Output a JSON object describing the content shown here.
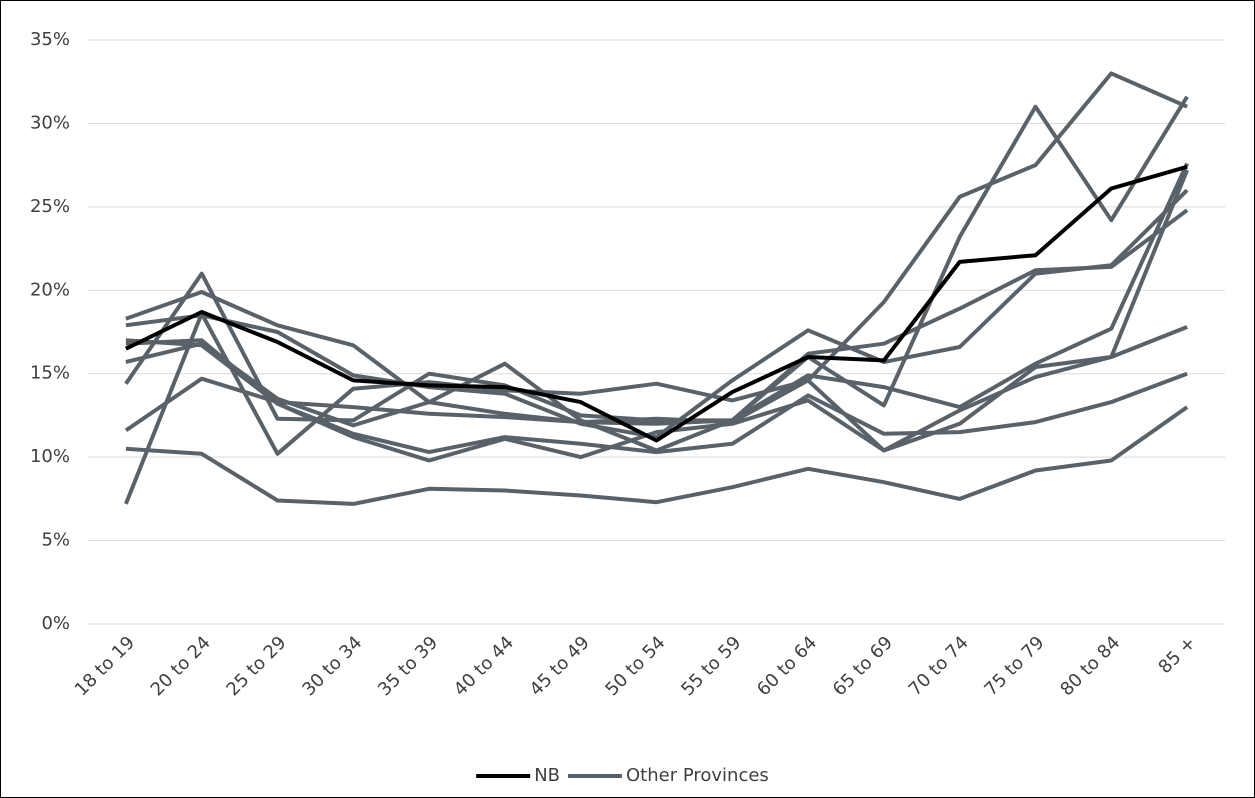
{
  "chart_data": {
    "type": "line",
    "categories": [
      "18 to 19",
      "20 to 24",
      "25 to 29",
      "30 to 34",
      "35 to 39",
      "40 to 44",
      "45 to 49",
      "50 to 54",
      "55 to 59",
      "60 to 64",
      "65 to 69",
      "70 to 74",
      "75 to 79",
      "80 to 84",
      "85 +"
    ],
    "series": [
      {
        "name": "NB",
        "color": "#000000",
        "values": [
          16.5,
          18.7,
          16.9,
          14.6,
          14.3,
          14.2,
          13.3,
          11.0,
          13.9,
          16.0,
          15.8,
          21.7,
          22.1,
          26.1,
          27.4
        ]
      },
      {
        "name": "Other Provinces",
        "color": "#596169",
        "values": [
          18.3,
          19.9,
          17.9,
          16.7,
          13.3,
          12.6,
          12.1,
          12.3,
          12.1,
          14.6,
          19.3,
          25.6,
          27.5,
          33.0,
          31.0
        ]
      },
      {
        "name": "Other Provinces",
        "color": "#596169",
        "values": [
          17.9,
          18.5,
          17.5,
          14.9,
          14.2,
          13.8,
          12.0,
          11.2,
          14.6,
          17.6,
          15.7,
          16.6,
          21.0,
          21.5,
          26.0
        ]
      },
      {
        "name": "Other Provinces",
        "color": "#596169",
        "values": [
          14.4,
          21.0,
          12.3,
          12.2,
          15.0,
          14.3,
          12.5,
          12.2,
          12.2,
          16.0,
          13.1,
          23.2,
          31.0,
          24.2,
          31.6
        ]
      },
      {
        "name": "Other Provinces",
        "color": "#596169",
        "values": [
          15.7,
          16.8,
          13.5,
          11.9,
          13.3,
          15.6,
          12.2,
          10.4,
          12.2,
          16.2,
          16.8,
          18.9,
          21.2,
          21.4,
          24.8
        ]
      },
      {
        "name": "Other Provinces",
        "color": "#596169",
        "values": [
          11.6,
          14.7,
          13.3,
          13.0,
          12.6,
          12.4,
          12.1,
          12.0,
          12.2,
          14.9,
          14.2,
          13.0,
          15.6,
          17.7,
          27.6
        ]
      },
      {
        "name": "Other Provinces",
        "color": "#596169",
        "values": [
          7.2,
          18.6,
          10.2,
          14.1,
          14.5,
          14.0,
          13.8,
          14.4,
          13.4,
          14.6,
          10.4,
          12.0,
          15.4,
          16.0,
          17.8
        ]
      },
      {
        "name": "Other Provinces",
        "color": "#596169",
        "values": [
          17.0,
          16.7,
          13.2,
          11.4,
          10.3,
          11.2,
          10.8,
          10.3,
          10.8,
          13.7,
          11.4,
          11.5,
          12.1,
          13.3,
          15.0
        ]
      },
      {
        "name": "Other Provinces",
        "color": "#596169",
        "values": [
          16.8,
          17.0,
          13.2,
          11.2,
          9.8,
          11.1,
          10.0,
          11.5,
          12.0,
          13.4,
          10.4,
          12.8,
          14.8,
          16.0,
          27.2
        ]
      },
      {
        "name": "Other Provinces",
        "color": "#596169",
        "values": [
          10.5,
          10.2,
          7.4,
          7.2,
          8.1,
          8.0,
          7.7,
          7.3,
          8.2,
          9.3,
          8.5,
          7.5,
          9.2,
          9.8,
          13.0
        ]
      }
    ],
    "ylim": [
      0,
      35
    ],
    "yticks": [
      {
        "value": 0,
        "label": "0%"
      },
      {
        "value": 5,
        "label": "5%"
      },
      {
        "value": 10,
        "label": "10%"
      },
      {
        "value": 15,
        "label": "15%"
      },
      {
        "value": 20,
        "label": "20%"
      },
      {
        "value": 25,
        "label": "25%"
      },
      {
        "value": 30,
        "label": "30%"
      },
      {
        "value": 35,
        "label": "35%"
      }
    ],
    "grid": true,
    "legend": "bottom"
  }
}
